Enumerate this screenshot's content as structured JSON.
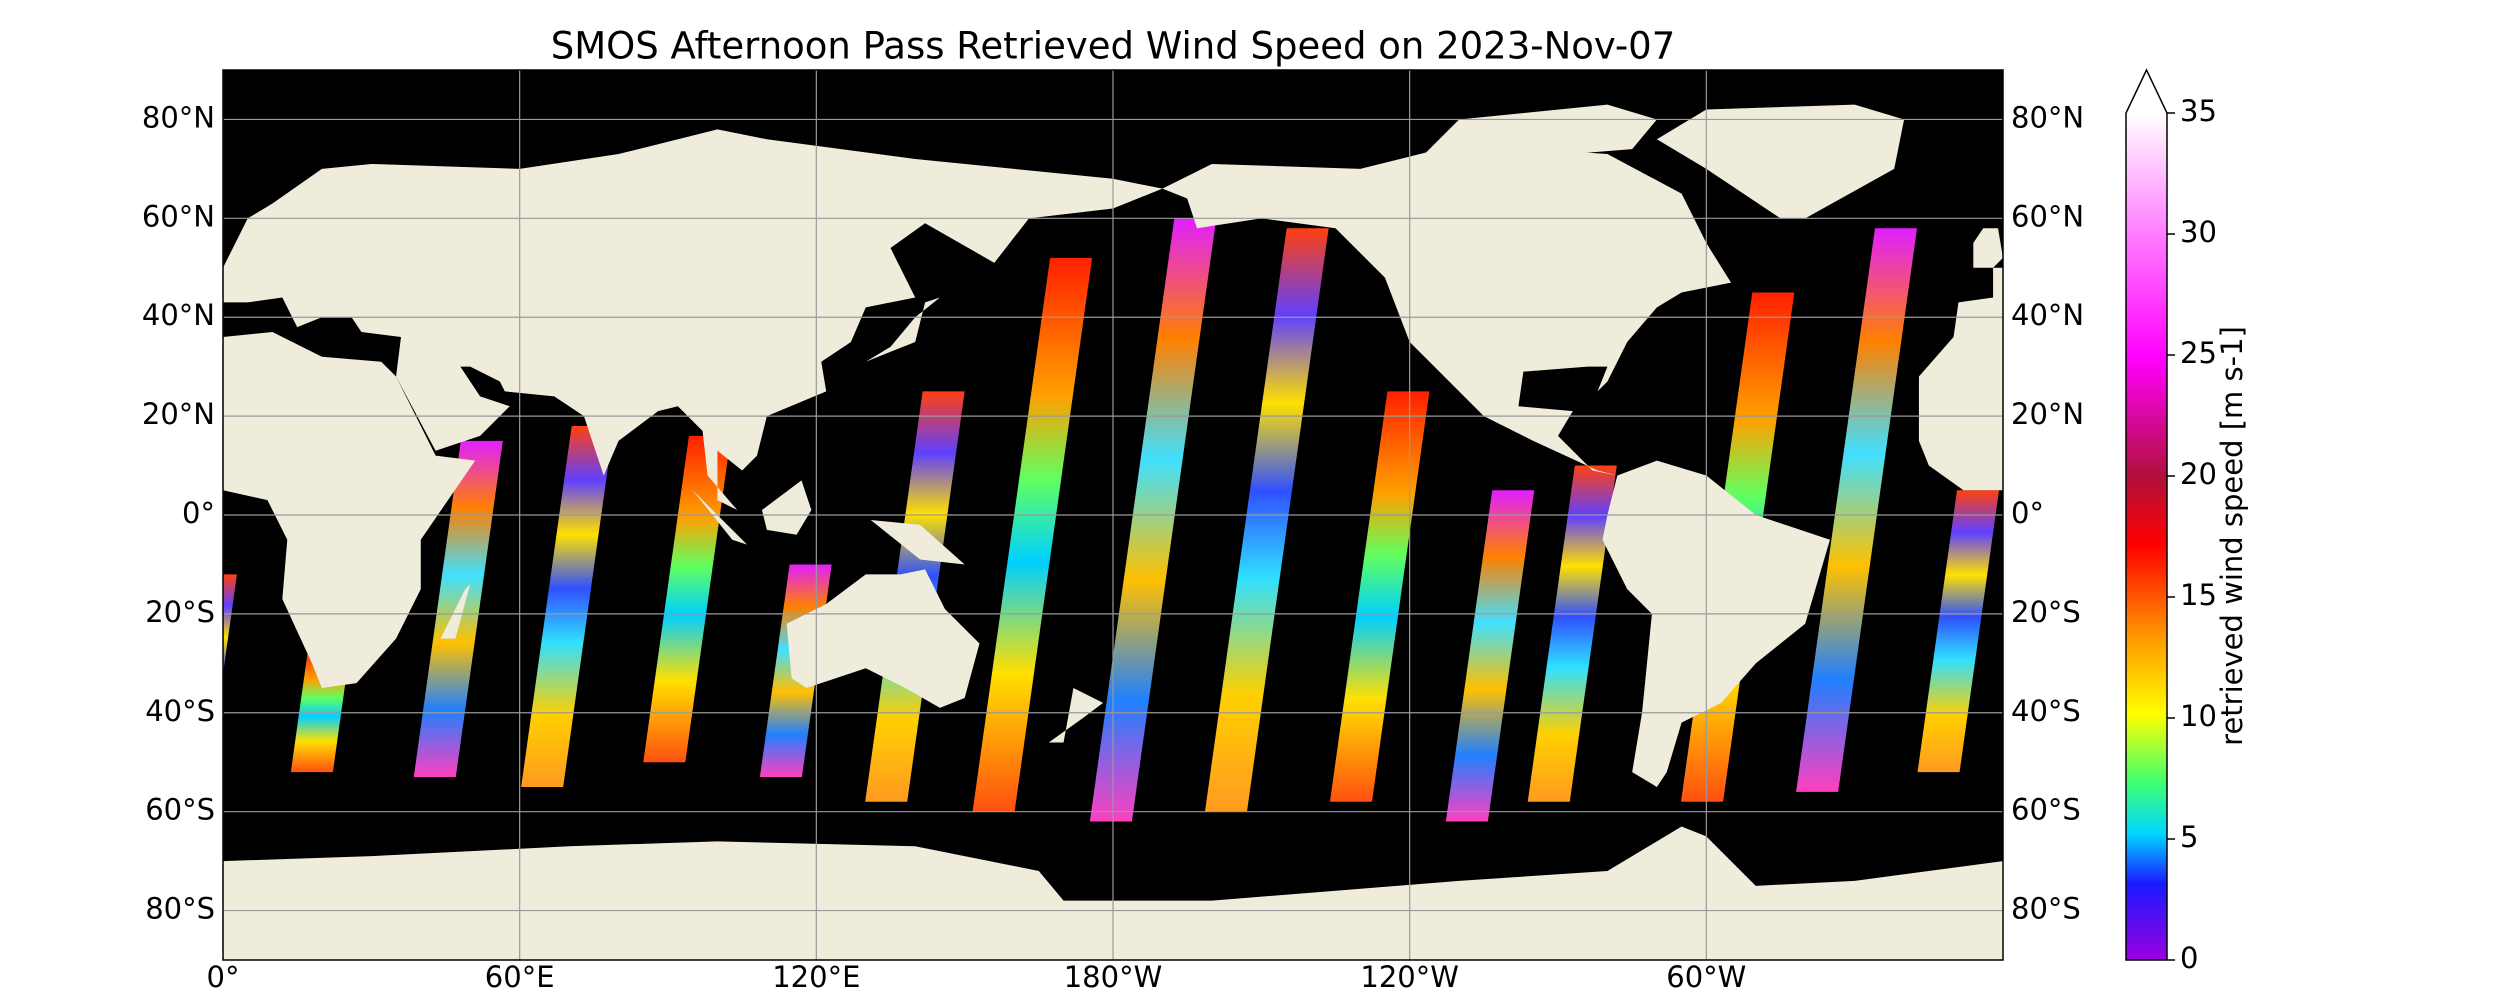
{
  "title": "SMOS Afternoon Pass Retrieved Wind Speed on 2023-Nov-07",
  "map": {
    "lonlim": [
      0,
      360
    ],
    "latlim": [
      -90,
      90
    ],
    "grid": true,
    "lon_ticks": [
      {
        "value": 0,
        "label": "0°"
      },
      {
        "value": 60,
        "label": "60°E"
      },
      {
        "value": 120,
        "label": "120°E"
      },
      {
        "value": 180,
        "label": "180°W"
      },
      {
        "value": 240,
        "label": "120°W"
      },
      {
        "value": 300,
        "label": "60°W"
      }
    ],
    "lat_ticks": [
      {
        "value": 80,
        "label": "80°N"
      },
      {
        "value": 60,
        "label": "60°N"
      },
      {
        "value": 40,
        "label": "40°N"
      },
      {
        "value": 20,
        "label": "20°N"
      },
      {
        "value": 0,
        "label": "0°"
      },
      {
        "value": -20,
        "label": "20°S"
      },
      {
        "value": -40,
        "label": "40°S"
      },
      {
        "value": -60,
        "label": "60°S"
      },
      {
        "value": -80,
        "label": "80°S"
      }
    ]
  },
  "colorbar": {
    "label": "retrieved wind speed [m s-1]",
    "lim": [
      0,
      35
    ],
    "ticks": [
      0,
      5,
      10,
      15,
      20,
      25,
      30,
      35
    ],
    "extend": "max"
  }
}
